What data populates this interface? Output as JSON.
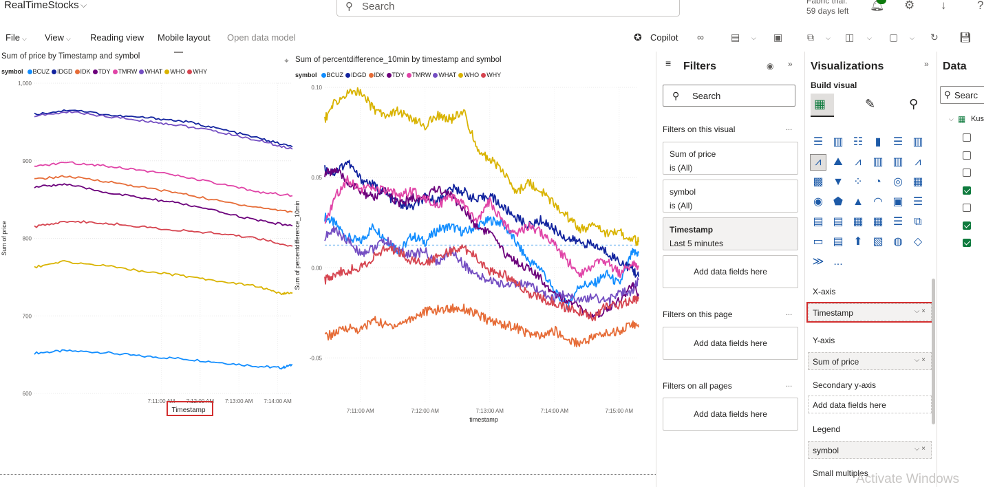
{
  "topbar": {
    "app_title": "RealTimeStocks",
    "search_placeholder": "Search",
    "trial_line1": "Fabric trial:",
    "trial_line2": "59 days left"
  },
  "ribbon": {
    "file": "File",
    "view": "View",
    "reading_view": "Reading view",
    "mobile_layout": "Mobile layout",
    "open_data_model": "Open data model",
    "copilot": "Copilot"
  },
  "symbols": [
    {
      "name": "BCUZ",
      "color": "#118dff"
    },
    {
      "name": "IDGD",
      "color": "#12239e"
    },
    {
      "name": "IDK",
      "color": "#e66c37"
    },
    {
      "name": "TDY",
      "color": "#6b007b"
    },
    {
      "name": "TMRW",
      "color": "#e044a7"
    },
    {
      "name": "WHAT",
      "color": "#744ec2"
    },
    {
      "name": "WHO",
      "color": "#d9b300"
    },
    {
      "name": "WHY",
      "color": "#d64550"
    }
  ],
  "chart_data": [
    {
      "type": "line",
      "title": "Sum of price by Timestamp and symbol",
      "legend_title": "symbol",
      "xlabel": "Timestamp",
      "ylabel": "Sum of price",
      "y_ticks": [
        "1,000",
        "900",
        "800",
        "700",
        "600"
      ],
      "x_ticks": [
        "7:11:00 AM",
        "7:12:00 AM",
        "7:13:00 AM",
        "7:14:00 AM"
      ],
      "ylim": [
        600,
        1000
      ],
      "x_range_minutes": [
        7.73,
        14.38
      ],
      "series": [
        {
          "name": "BCUZ",
          "x": [
            7.73,
            8.5,
            9.5,
            10.5,
            11.5,
            12.5,
            13.5,
            14.1,
            14.38
          ],
          "values": [
            652,
            655,
            653,
            648,
            645,
            640,
            635,
            633,
            637
          ]
        },
        {
          "name": "IDGD",
          "x": [
            7.73,
            8.7,
            9.8,
            10.8,
            11.7,
            12.6,
            13.6,
            14.38
          ],
          "values": [
            960,
            966,
            958,
            955,
            950,
            940,
            928,
            918
          ]
        },
        {
          "name": "IDK",
          "x": [
            7.73,
            8.5,
            9.5,
            10.5,
            11.5,
            12.5,
            13.5,
            14.38
          ],
          "values": [
            876,
            880,
            874,
            866,
            858,
            848,
            840,
            834
          ]
        },
        {
          "name": "TDY",
          "x": [
            7.73,
            8.5,
            9.5,
            10.5,
            11.5,
            12.5,
            13.5,
            14.38
          ],
          "values": [
            866,
            870,
            860,
            852,
            845,
            834,
            823,
            816
          ]
        },
        {
          "name": "TMRW",
          "x": [
            7.73,
            8.5,
            9.5,
            10.5,
            11.5,
            12.5,
            13.5,
            14.38
          ],
          "values": [
            892,
            898,
            894,
            888,
            880,
            870,
            860,
            855
          ]
        },
        {
          "name": "WHAT",
          "x": [
            7.73,
            8.7,
            9.8,
            10.8,
            11.7,
            12.6,
            13.6,
            14.38
          ],
          "values": [
            958,
            963,
            956,
            950,
            944,
            936,
            925,
            915
          ]
        },
        {
          "name": "WHO",
          "x": [
            7.73,
            8.5,
            9.5,
            10.5,
            11.5,
            12.5,
            13.5,
            14.1,
            14.38
          ],
          "values": [
            763,
            770,
            765,
            758,
            752,
            745,
            738,
            728,
            730
          ]
        },
        {
          "name": "WHY",
          "x": [
            7.73,
            8.5,
            9.5,
            10.5,
            11.5,
            12.5,
            13.5,
            14.38
          ],
          "values": [
            815,
            822,
            820,
            815,
            810,
            806,
            800,
            790
          ]
        }
      ]
    },
    {
      "type": "line",
      "title": "Sum of percentdifference_10min by timestamp and symbol",
      "legend_title": "symbol",
      "xlabel": "timestamp",
      "ylabel": "Sum of percentdifference_10min",
      "y_ticks": [
        "0.10",
        "0.05",
        "0.00",
        "-0.05"
      ],
      "x_ticks": [
        "7:11:00 AM",
        "7:12:00 AM",
        "7:13:00 AM",
        "7:14:00 AM",
        "7:15:00 AM"
      ],
      "ylim": [
        -0.1,
        0.1
      ],
      "x_range_minutes": [
        10.45,
        15.3
      ],
      "reference_line": 0,
      "series": [
        {
          "name": "BCUZ",
          "x": [
            10.45,
            10.6,
            10.8,
            11.0,
            11.2,
            11.4,
            11.6,
            11.8,
            12.0,
            12.2,
            12.4,
            12.6,
            12.8,
            13.0,
            13.2,
            13.4,
            13.6,
            13.8,
            14.0,
            14.2,
            14.4,
            14.6,
            14.8,
            15.0,
            15.2,
            15.3
          ],
          "values": [
            0.018,
            0.014,
            0.005,
            0.002,
            0.012,
            0.004,
            -0.004,
            0.006,
            0.002,
            0.01,
            0.012,
            0.008,
            0.012,
            0.016,
            0.014,
            0.002,
            -0.01,
            -0.015,
            -0.03,
            -0.038,
            -0.025,
            -0.025,
            -0.018,
            -0.025,
            -0.005,
            -0.005
          ]
        },
        {
          "name": "IDGD",
          "x": [
            10.45,
            10.6,
            10.8,
            11.0,
            11.2,
            11.4,
            11.6,
            11.8,
            12.0,
            12.2,
            12.4,
            12.6,
            12.8,
            13.0,
            13.2,
            13.4,
            13.6,
            13.8,
            14.0,
            14.2,
            14.4,
            14.6,
            14.8,
            15.0,
            15.2,
            15.3
          ],
          "values": [
            0.048,
            0.046,
            0.053,
            0.042,
            0.038,
            0.032,
            0.026,
            0.024,
            0.03,
            0.028,
            0.036,
            0.034,
            0.028,
            0.032,
            0.024,
            0.018,
            0.012,
            0.016,
            0.01,
            0.004,
            0.002,
            0.0,
            -0.004,
            -0.01,
            -0.015,
            -0.02
          ]
        },
        {
          "name": "IDK",
          "x": [
            10.45,
            10.6,
            10.8,
            11.0,
            11.2,
            11.4,
            11.6,
            11.8,
            12.0,
            12.2,
            12.4,
            12.6,
            12.8,
            13.0,
            13.2,
            13.4,
            13.6,
            13.8,
            14.0,
            14.2,
            14.4,
            14.6,
            14.8,
            15.0,
            15.2,
            15.3
          ],
          "values": [
            -0.058,
            -0.056,
            -0.052,
            -0.054,
            -0.047,
            -0.051,
            -0.05,
            -0.046,
            -0.042,
            -0.041,
            -0.04,
            -0.04,
            -0.044,
            -0.048,
            -0.05,
            -0.052,
            -0.056,
            -0.058,
            -0.054,
            -0.06,
            -0.062,
            -0.058,
            -0.056,
            -0.054,
            -0.05,
            -0.052
          ]
        },
        {
          "name": "TDY",
          "x": [
            10.45,
            10.6,
            10.8,
            11.0,
            11.2,
            11.4,
            11.6,
            11.8,
            12.0,
            12.2,
            12.4,
            12.6,
            12.8,
            13.0,
            13.2,
            13.4,
            13.6,
            13.8,
            14.0,
            14.2,
            14.4,
            14.6,
            14.8,
            15.0,
            15.2,
            15.3
          ],
          "values": [
            0.045,
            0.048,
            0.04,
            0.034,
            0.03,
            0.034,
            0.026,
            0.03,
            0.03,
            0.036,
            0.032,
            0.022,
            0.012,
            0.008,
            -0.004,
            -0.01,
            -0.015,
            -0.022,
            -0.03,
            -0.035,
            -0.04,
            -0.047,
            -0.04,
            -0.035,
            -0.025,
            -0.032
          ]
        },
        {
          "name": "TMRW",
          "x": [
            10.45,
            10.6,
            10.8,
            11.0,
            11.2,
            11.4,
            11.6,
            11.8,
            12.0,
            12.2,
            12.4,
            12.6,
            12.8,
            13.0,
            13.2,
            13.4,
            13.6,
            13.8,
            14.0,
            14.2,
            14.4,
            14.6,
            14.8,
            15.0,
            15.2,
            15.3
          ],
          "values": [
            0.012,
            0.03,
            0.042,
            0.036,
            0.036,
            0.034,
            0.032,
            0.034,
            0.03,
            0.026,
            0.03,
            0.026,
            0.014,
            0.028,
            0.014,
            0.008,
            0.012,
            0.008,
            0.0,
            -0.01,
            -0.018,
            -0.012,
            -0.01,
            -0.018,
            -0.012,
            -0.014
          ]
        },
        {
          "name": "WHAT",
          "x": [
            10.45,
            10.6,
            10.8,
            11.0,
            11.2,
            11.4,
            11.6,
            11.8,
            12.0,
            12.2,
            12.4,
            12.6,
            12.8,
            13.0,
            13.2,
            13.4,
            13.6,
            13.8,
            14.0,
            14.2,
            14.4,
            14.6,
            14.8,
            15.0,
            15.2,
            15.3
          ],
          "values": [
            0.005,
            0.01,
            0.003,
            -0.005,
            -0.002,
            0.003,
            -0.004,
            -0.006,
            -0.004,
            -0.012,
            -0.003,
            -0.012,
            -0.02,
            -0.022,
            -0.025,
            -0.024,
            -0.026,
            -0.03,
            -0.034,
            -0.03,
            -0.036,
            -0.032,
            -0.036,
            -0.03,
            -0.03,
            -0.022
          ]
        },
        {
          "name": "WHO",
          "x": [
            10.45,
            10.6,
            10.8,
            11.0,
            11.2,
            11.4,
            11.6,
            11.8,
            12.0,
            12.2,
            12.4,
            12.6,
            12.8,
            13.0,
            13.2,
            13.4,
            13.6,
            13.8,
            14.0,
            14.2,
            14.4,
            14.6,
            14.8,
            15.0,
            15.2,
            15.3
          ],
          "values": [
            0.08,
            0.09,
            0.096,
            0.098,
            0.086,
            0.083,
            0.085,
            0.079,
            0.076,
            0.082,
            0.08,
            0.084,
            0.062,
            0.054,
            0.048,
            0.033,
            0.04,
            0.034,
            0.026,
            0.018,
            0.01,
            0.012,
            0.008,
            0.008,
            0.004,
            0.002
          ]
        },
        {
          "name": "WHY",
          "x": [
            10.45,
            10.6,
            10.8,
            11.0,
            11.2,
            11.4,
            11.6,
            11.8,
            12.0,
            12.2,
            12.4,
            12.6,
            12.8,
            13.0,
            13.2,
            13.4,
            13.6,
            13.8,
            14.0,
            14.2,
            14.4,
            14.6,
            14.8,
            15.0,
            15.2,
            15.3
          ],
          "values": [
            -0.022,
            -0.018,
            -0.016,
            -0.014,
            -0.008,
            -0.002,
            -0.004,
            -0.01,
            -0.012,
            -0.006,
            -0.004,
            -0.002,
            -0.008,
            -0.016,
            -0.018,
            -0.024,
            -0.03,
            -0.034,
            -0.036,
            -0.04,
            -0.042,
            -0.046,
            -0.038,
            -0.038,
            -0.034,
            -0.034
          ]
        }
      ]
    }
  ],
  "filters": {
    "title": "Filters",
    "search_placeholder": "Search",
    "on_visual": "Filters on this visual",
    "cards": [
      {
        "field": "Sum of price",
        "value": "is (All)"
      },
      {
        "field": "symbol",
        "value": "is (All)"
      },
      {
        "field": "Timestamp",
        "value": "Last 5 minutes"
      }
    ],
    "add_here": "Add data fields here",
    "on_page": "Filters on this page",
    "on_all": "Filters on all pages",
    "more": "..."
  },
  "visualizations": {
    "title": "Visualizations",
    "build_visual": "Build visual",
    "more": "...",
    "x_axis_label": "X-axis",
    "x_axis_field": "Timestamp",
    "y_axis_label": "Y-axis",
    "y_axis_field": "Sum of price",
    "secondary_y_label": "Secondary y-axis",
    "secondary_y_placeholder": "Add data fields here",
    "legend_label": "Legend",
    "legend_field": "symbol",
    "small_multiples_label": "Small multiples"
  },
  "data_pane": {
    "title": "Data",
    "search_placeholder": "Searc",
    "item_label": "Kus",
    "checks": [
      false,
      false,
      false,
      true,
      false,
      true,
      true
    ]
  },
  "watermark": "Activate Windows"
}
